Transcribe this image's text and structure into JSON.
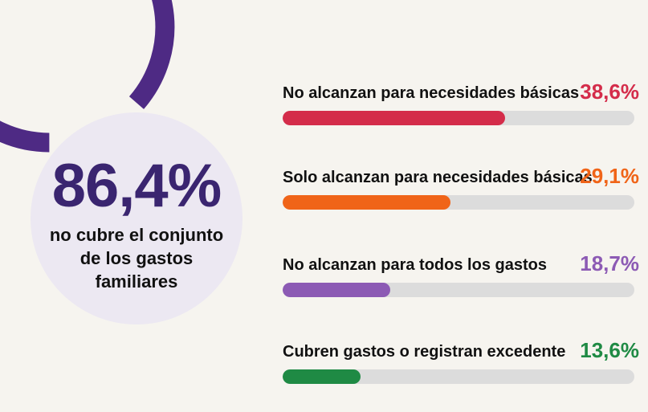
{
  "chart_data": [
    {
      "type": "pie",
      "value_label": "86,4%",
      "value": 86.4,
      "caption": "no cubre el conjunto de los gastos familiares",
      "colors": {
        "arc": "#4e2a84",
        "track": "#ece8f2",
        "value_text": "#3a2570"
      }
    },
    {
      "type": "bar",
      "orientation": "horizontal",
      "xlim": [
        0,
        61.1
      ],
      "items": [
        {
          "label": "No alcanzan para necesidades básicas",
          "value": 38.6,
          "value_label": "38,6%",
          "color": "#d42c4a"
        },
        {
          "label": "Solo alcanzan para necesidades básicas",
          "value": 29.1,
          "value_label": "29,1%",
          "color": "#f06418"
        },
        {
          "label": "No alcanzan para todos los gastos",
          "value": 18.7,
          "value_label": "18,7%",
          "color": "#8c5ab4"
        },
        {
          "label": "Cubren gastos o registran excedente",
          "value": 13.6,
          "value_label": "13,6%",
          "color": "#1f8a44"
        }
      ],
      "track_color": "#dcdcdc"
    }
  ]
}
